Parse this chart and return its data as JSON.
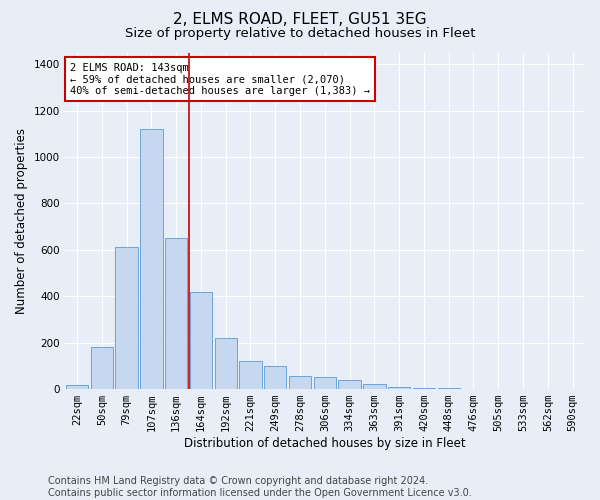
{
  "title": "2, ELMS ROAD, FLEET, GU51 3EG",
  "subtitle": "Size of property relative to detached houses in Fleet",
  "xlabel": "Distribution of detached houses by size in Fleet",
  "ylabel": "Number of detached properties",
  "categories": [
    "22sqm",
    "50sqm",
    "79sqm",
    "107sqm",
    "136sqm",
    "164sqm",
    "192sqm",
    "221sqm",
    "249sqm",
    "278sqm",
    "306sqm",
    "334sqm",
    "363sqm",
    "391sqm",
    "420sqm",
    "448sqm",
    "476sqm",
    "505sqm",
    "533sqm",
    "562sqm",
    "590sqm"
  ],
  "values": [
    18,
    180,
    610,
    1120,
    650,
    420,
    220,
    120,
    100,
    55,
    50,
    40,
    20,
    10,
    5,
    3,
    2,
    1,
    0,
    0,
    0
  ],
  "bar_color": "#c5d8f0",
  "bar_edge_color": "#5b9bd5",
  "vline_color": "#cc0000",
  "vline_x": 4.5,
  "annotation_text": "2 ELMS ROAD: 143sqm\n← 59% of detached houses are smaller (2,070)\n40% of semi-detached houses are larger (1,383) →",
  "annotation_box_color": "#ffffff",
  "annotation_box_edge": "#cc0000",
  "ylim": [
    0,
    1450
  ],
  "yticks": [
    0,
    200,
    400,
    600,
    800,
    1000,
    1200,
    1400
  ],
  "bg_color": "#e8eef8",
  "grid_color": "#ffffff",
  "title_fontsize": 11,
  "subtitle_fontsize": 9.5,
  "axis_label_fontsize": 8.5,
  "tick_fontsize": 7.5,
  "annotation_fontsize": 7.5,
  "footer_fontsize": 7,
  "footer": "Contains HM Land Registry data © Crown copyright and database right 2024.\nContains public sector information licensed under the Open Government Licence v3.0."
}
